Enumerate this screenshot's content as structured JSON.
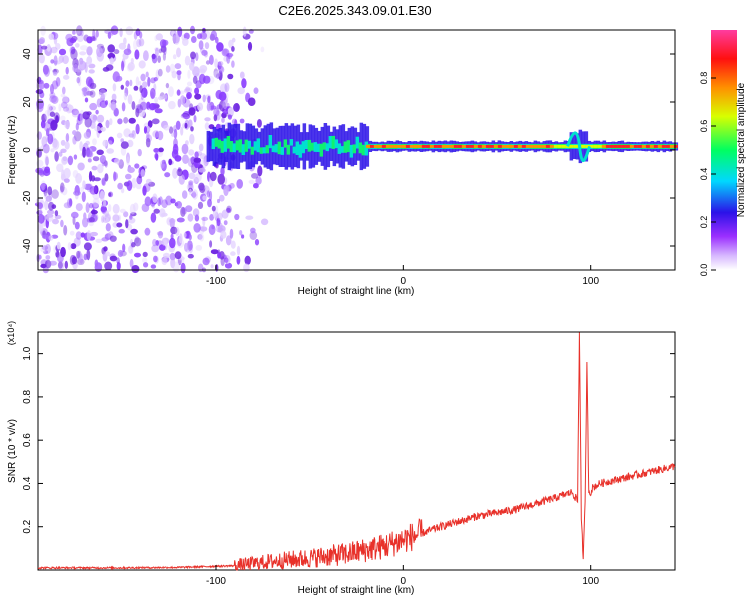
{
  "title": "C2E6.2025.343.09.01.E30",
  "chart_data": [
    {
      "type": "heatmap",
      "name": "spectrogram",
      "xlabel": "Height of straight line (km)",
      "ylabel": "Frequency (Hz)",
      "xlim": [
        -195,
        145
      ],
      "ylim": [
        -50,
        50
      ],
      "x_ticks": [
        -100,
        0,
        100
      ],
      "x_tick_labels": [
        "-100",
        "0",
        "100"
      ],
      "y_ticks": [
        -40,
        -20,
        0,
        20,
        40
      ],
      "y_tick_labels": [
        "-40",
        "-20",
        "0",
        "20",
        "40"
      ],
      "colorbar": {
        "label": "Normalized spectral amplitude",
        "range": [
          0,
          1
        ],
        "ticks": [
          0.0,
          0.2,
          0.4,
          0.6,
          0.8
        ],
        "tick_labels": [
          "0.0",
          "0.2",
          "0.4",
          "0.6",
          "0.8"
        ],
        "colors": [
          "#ffffff",
          "#9b2fff",
          "#2b12e8",
          "#00d8ff",
          "#00ff60",
          "#d8ff00",
          "#ff9000",
          "#ff1010",
          "#ff3ca0"
        ]
      },
      "features": {
        "noise_region_km": [
          -195,
          -90
        ],
        "signal_band_start_km": -105,
        "signal_center_hz": 1.5,
        "strong_signal_km": [
          -20,
          80
        ],
        "disturbance_km": [
          90,
          97
        ]
      }
    },
    {
      "type": "line",
      "name": "snr",
      "xlabel": "Height of straight line (km)",
      "ylabel": "SNR (10 * v/v)",
      "y_multiplier": "(x10⁴)",
      "xlim": [
        -195,
        145
      ],
      "ylim": [
        0,
        1.1
      ],
      "x_ticks": [
        -100,
        0,
        100
      ],
      "x_tick_labels": [
        "-100",
        "0",
        "100"
      ],
      "y_ticks": [
        0.2,
        0.4,
        0.6,
        0.8,
        1.0
      ],
      "y_tick_labels": [
        "0.2",
        "0.4",
        "0.6",
        "0.8",
        "1.0"
      ],
      "color": "#e8312a",
      "series": [
        {
          "name": "SNR",
          "x": [
            -195,
            -150,
            -120,
            -90,
            -70,
            -50,
            -30,
            -10,
            0,
            10,
            20,
            40,
            60,
            80,
            90,
            93,
            94,
            95,
            96,
            97,
            98,
            99,
            100,
            101,
            105,
            120,
            135,
            145
          ],
          "y": [
            0.01,
            0.01,
            0.012,
            0.02,
            0.04,
            0.055,
            0.075,
            0.11,
            0.14,
            0.17,
            0.2,
            0.25,
            0.28,
            0.33,
            0.36,
            0.32,
            1.1,
            0.25,
            0.05,
            0.3,
            0.95,
            0.36,
            0.36,
            0.38,
            0.4,
            0.43,
            0.46,
            0.48
          ]
        }
      ]
    }
  ]
}
